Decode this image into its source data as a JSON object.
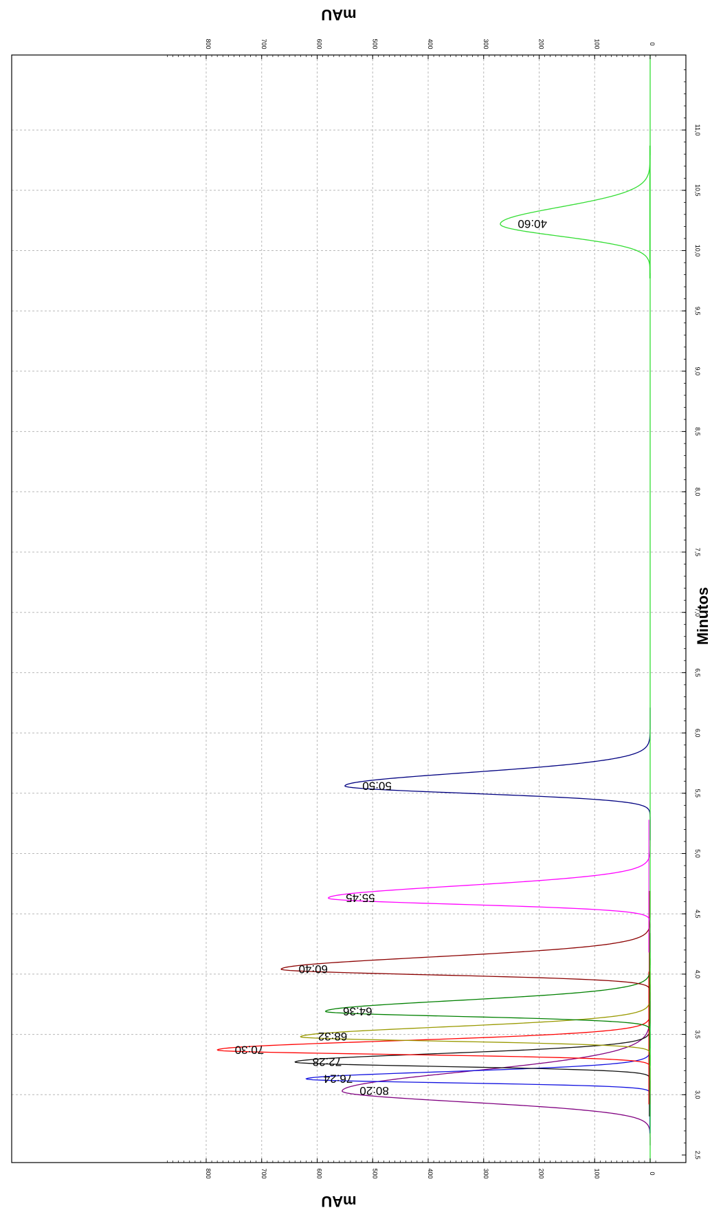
{
  "chart_data": {
    "type": "line",
    "orientation": "rotated",
    "xlabel": "Minutos",
    "ylabel": "mAU",
    "xlim": [
      2.5,
      11.5
    ],
    "ylim": [
      -10,
      870
    ],
    "x_ticks": [
      2.5,
      3.0,
      3.5,
      4.0,
      4.5,
      5.0,
      5.5,
      6.0,
      6.5,
      7.0,
      7.5,
      8.0,
      8.5,
      9.0,
      9.5,
      10.0,
      10.5,
      11.0
    ],
    "x_tick_labels": [
      "2,5",
      "3,0",
      "3,5",
      "4,0",
      "4,5",
      "5,0",
      "5,5",
      "6,0",
      "6,5",
      "7,0",
      "7,5",
      "8,0",
      "8,5",
      "9,0",
      "9,5",
      "10,0",
      "10,5",
      "11,0"
    ],
    "y_ticks": [
      0,
      100,
      200,
      300,
      400,
      500,
      600,
      700,
      800
    ],
    "y_tick_labels": [
      "0",
      "100",
      "200",
      "300",
      "400",
      "500",
      "600",
      "700",
      "800"
    ],
    "grid": true,
    "series": [
      {
        "name": "80:20",
        "color": "#800080",
        "peak_time": 3.03,
        "peak_height": 555,
        "width_left": 0.09,
        "width_right": 0.16
      },
      {
        "name": "76:24",
        "color": "#1010e0",
        "peak_time": 3.13,
        "peak_height": 620,
        "width_left": 0.03,
        "width_right": 0.06
      },
      {
        "name": "72:28",
        "color": "#101010",
        "peak_time": 3.27,
        "peak_height": 640,
        "width_left": 0.035,
        "width_right": 0.07
      },
      {
        "name": "70:30",
        "color": "#ff0000",
        "peak_time": 3.37,
        "peak_height": 780,
        "width_left": 0.035,
        "width_right": 0.075
      },
      {
        "name": "68:32",
        "color": "#999900",
        "peak_time": 3.48,
        "peak_height": 630,
        "width_left": 0.035,
        "width_right": 0.08
      },
      {
        "name": "64:36",
        "color": "#008000",
        "peak_time": 3.69,
        "peak_height": 585,
        "width_left": 0.04,
        "width_right": 0.09
      },
      {
        "name": "60:40",
        "color": "#8b0000",
        "peak_time": 4.04,
        "peak_height": 665,
        "width_left": 0.045,
        "width_right": 0.1
      },
      {
        "name": "55:45",
        "color": "#ff00ff",
        "peak_time": 4.63,
        "peak_height": 580,
        "width_left": 0.05,
        "width_right": 0.1
      },
      {
        "name": "50:50",
        "color": "#000080",
        "peak_time": 5.56,
        "peak_height": 550,
        "width_left": 0.06,
        "width_right": 0.11
      },
      {
        "name": "40:60",
        "color": "#33dd33",
        "peak_time": 10.22,
        "peak_height": 270,
        "width_left": 0.1,
        "width_right": 0.14
      }
    ]
  }
}
